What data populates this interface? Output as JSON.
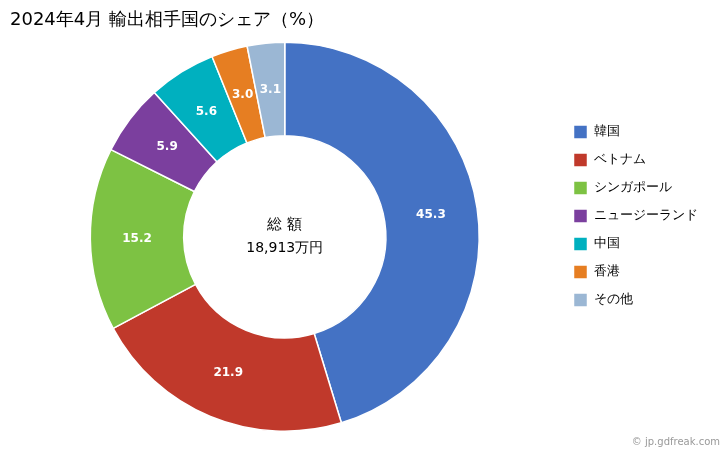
{
  "chart_data": {
    "type": "doughnut",
    "title": "2024年4月 輸出相手国のシェア（%）",
    "center_text": [
      "総 額",
      "18,913万円"
    ],
    "source": "© jp.gdfreak.com",
    "categories": [
      "韓国",
      "ベトナム",
      "シンガポール",
      "ニュージーランド",
      "中国",
      "香港",
      "その他"
    ],
    "values": [
      45.3,
      21.9,
      15.2,
      5.9,
      5.6,
      3.0,
      3.1
    ],
    "value_labels": [
      "45.3",
      "21.9",
      "15.2",
      "5.9",
      "5.6",
      "3.0",
      "3.1"
    ],
    "colors": [
      "#4472C4",
      "#C0392B",
      "#7DC243",
      "#7B3F9E",
      "#00B0BF",
      "#E67E22",
      "#9BB7D4"
    ],
    "data_labels": true,
    "legend": "right"
  }
}
